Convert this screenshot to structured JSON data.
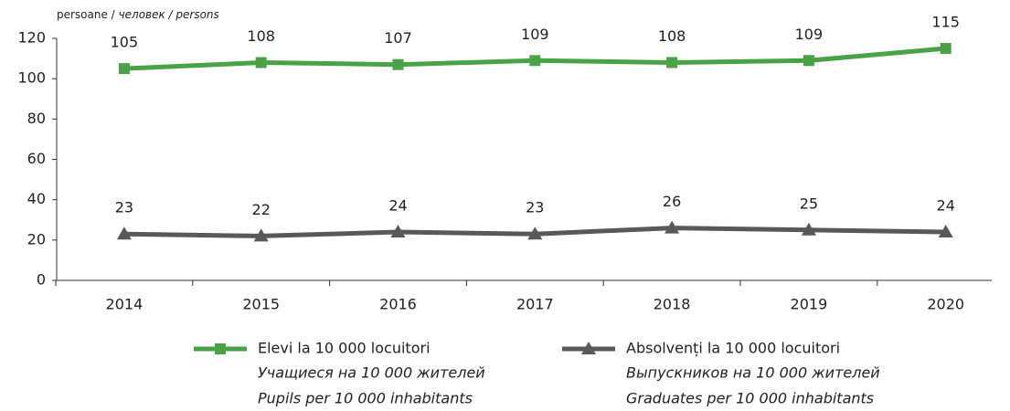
{
  "chart_data": {
    "type": "line",
    "y_axis_label": [
      "persoane / ",
      "человек / persons"
    ],
    "categories": [
      "2014",
      "2015",
      "2016",
      "2017",
      "2018",
      "2019",
      "2020"
    ],
    "series": [
      {
        "name": "Elevi la 10 000 locuitori",
        "translations": [
          "Учащиеся на 10 000 жителей",
          "Pupils per 10 000 inhabitants"
        ],
        "color": "#4aa247",
        "marker": "square",
        "values": [
          105,
          108,
          107,
          109,
          108,
          109,
          115
        ]
      },
      {
        "name": "Absolvenți la 10 000 locuitori",
        "translations": [
          "Выпускников на 10 000 жителей",
          "Graduates per 10 000 inhabitants"
        ],
        "color": "#58585a",
        "marker": "triangle",
        "values": [
          23,
          22,
          24,
          23,
          26,
          25,
          24
        ]
      }
    ],
    "ylim": [
      0,
      120
    ],
    "yticks": [
      0,
      20,
      40,
      60,
      80,
      100,
      120
    ],
    "grid": false
  }
}
